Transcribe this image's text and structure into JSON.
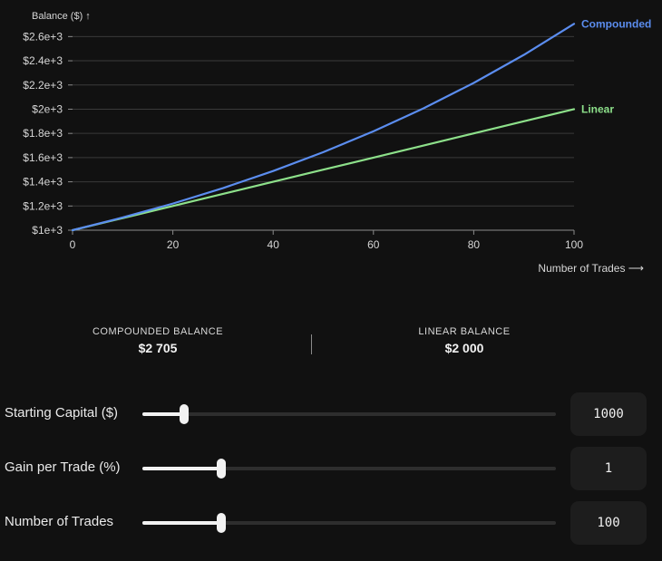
{
  "chart_data": {
    "type": "line",
    "ylabel": "Balance ($) ↑",
    "xlabel": "Number of Trades ⟶",
    "xlim": [
      0,
      100
    ],
    "ylim": [
      1000,
      2700
    ],
    "x_ticks": [
      "0",
      "20",
      "40",
      "60",
      "80",
      "100"
    ],
    "y_ticks": [
      "$1e+3",
      "$1.2e+3",
      "$1.4e+3",
      "$1.6e+3",
      "$1.8e+3",
      "$2e+3",
      "$2.2e+3",
      "$2.4e+3",
      "$2.6e+3"
    ],
    "grid": true,
    "x": [
      0,
      10,
      20,
      30,
      40,
      50,
      60,
      70,
      80,
      90,
      100
    ],
    "series": [
      {
        "name": "Compounded",
        "color": "#5b8def",
        "values": [
          1000,
          1105,
          1220,
          1348,
          1489,
          1645,
          1817,
          2007,
          2217,
          2449,
          2705
        ]
      },
      {
        "name": "Linear",
        "color": "#8de08a",
        "values": [
          1000,
          1100,
          1200,
          1300,
          1400,
          1500,
          1600,
          1700,
          1800,
          1900,
          2000
        ]
      }
    ]
  },
  "stats": {
    "compounded_label": "COMPOUNDED BALANCE",
    "compounded_value": "$2 705",
    "linear_label": "LINEAR BALANCE",
    "linear_value": "$2 000"
  },
  "controls": [
    {
      "label": "Starting Capital ($)",
      "value": "1000",
      "fraction": 0.1
    },
    {
      "label": "Gain per Trade (%)",
      "value": "1",
      "fraction": 0.19
    },
    {
      "label": "Number of Trades",
      "value": "100",
      "fraction": 0.19
    }
  ]
}
